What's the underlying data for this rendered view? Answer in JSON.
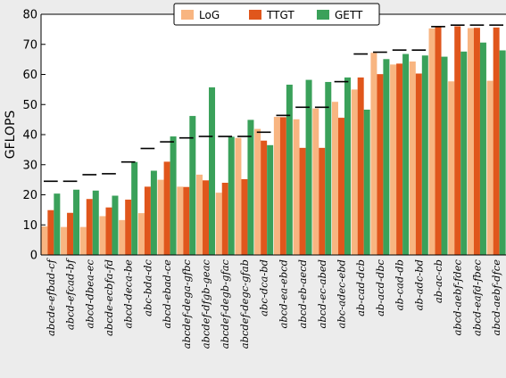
{
  "chart_data": {
    "type": "bar",
    "ylabel": "GFLOPS",
    "ylim": [
      0,
      80
    ],
    "yticks": [
      0,
      10,
      20,
      30,
      40,
      50,
      60,
      70,
      80
    ],
    "legend_position": "top-right",
    "categories": [
      "abcde-efbad-cf",
      "abcd-efcad-bf",
      "abcd-dbea-ec",
      "abcde-ecbfa-fd",
      "abcd-deca-be",
      "abc-bda-dc",
      "abcd-ebad-ce",
      "abcdef-dega-gfbc",
      "abcdef-dfgb-geac",
      "abcdef-degb-gfac",
      "abcdef-degc-gfab",
      "abc-dca-bd",
      "abcd-ea-ebcd",
      "abcd-eb-aecd",
      "abcd-ec-abed",
      "abc-adec-ebd",
      "ab-cad-dcb",
      "ab-acd-dbc",
      "ab-cad-db",
      "ab-adc-bd",
      "ab-ac-cb",
      "abcd-aebf-fdec",
      "abcd-eafd-fbec",
      "abcd-aebf-dfce"
    ],
    "series": [
      {
        "name": "LoG",
        "color": "#f8b581",
        "values": [
          9.5,
          9.3,
          9.3,
          12.9,
          11.6,
          13.9,
          25.0,
          22.7,
          26.7,
          20.7,
          38.9,
          41.9,
          45.9,
          45.1,
          48.7,
          50.9,
          55.0,
          67.2,
          63.3,
          64.3,
          75.3,
          57.7,
          75.4,
          57.9
        ]
      },
      {
        "name": "TTGT",
        "color": "#e0561c",
        "values": [
          14.9,
          14.0,
          18.6,
          15.8,
          18.4,
          22.7,
          31.0,
          22.6,
          24.8,
          24.0,
          25.2,
          38.0,
          45.8,
          35.6,
          35.6,
          45.6,
          59.0,
          60.1,
          63.6,
          60.3,
          75.9,
          76.0,
          75.5,
          75.6
        ]
      },
      {
        "name": "GETT",
        "color": "#3aa15a",
        "values": [
          20.4,
          21.7,
          21.4,
          19.7,
          30.9,
          28.0,
          39.4,
          46.2,
          55.7,
          39.3,
          44.9,
          36.5,
          56.6,
          58.2,
          57.5,
          59.0,
          48.3,
          65.1,
          66.8,
          66.3,
          65.9,
          67.6,
          70.6,
          68.0
        ]
      }
    ],
    "peak_markers": [
      24.5,
      24.5,
      26.7,
      27.0,
      30.9,
      35.4,
      37.6,
      38.9,
      39.4,
      39.4,
      39.4,
      40.8,
      46.4,
      49.1,
      49.1,
      57.6,
      66.8,
      67.4,
      68.1,
      68.1,
      75.9,
      76.4,
      76.4,
      76.4
    ]
  }
}
